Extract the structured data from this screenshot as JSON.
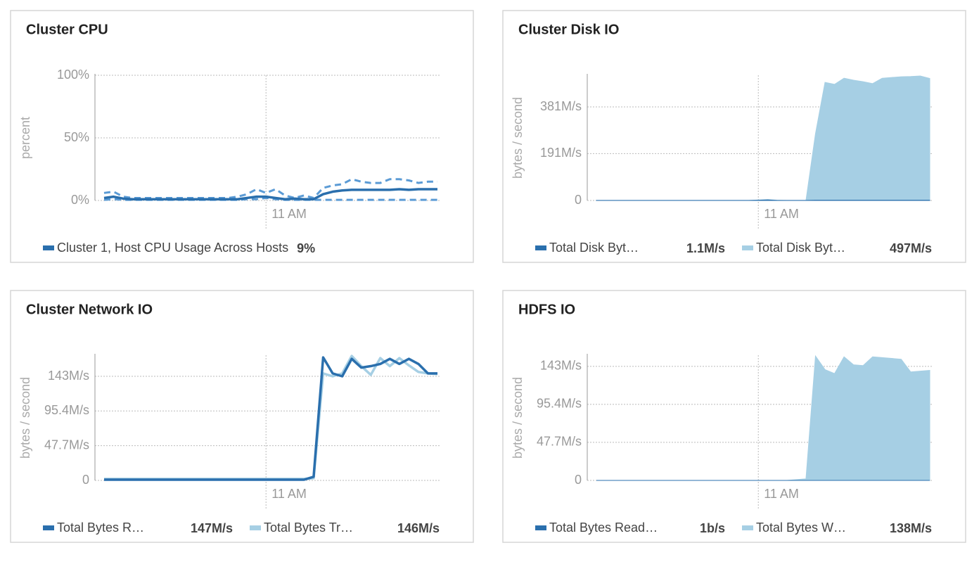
{
  "chart_data": [
    {
      "type": "line",
      "title": "Cluster CPU",
      "ylabel": "percent",
      "categories": [
        null,
        null,
        null,
        null,
        null,
        null,
        null,
        null,
        null,
        null,
        null,
        null,
        null,
        null,
        null,
        null,
        null,
        "11 AM",
        null,
        null,
        null,
        null,
        null,
        null,
        null,
        null,
        null,
        null,
        null,
        null,
        null,
        null,
        null,
        null,
        null,
        null
      ],
      "ylim": [
        0,
        100
      ],
      "yticks": [
        {
          "value": 0,
          "label": "0%"
        },
        {
          "value": 50,
          "label": "50%"
        },
        {
          "value": 100,
          "label": "100%"
        }
      ],
      "series": [
        {
          "name": "Cluster 1, Host CPU Usage Across Hosts",
          "legend_value": "9%",
          "color": "#2a6fad",
          "band_color": "#5b9bd5",
          "values": [
            2,
            3,
            1.5,
            1,
            1,
            1,
            1,
            1,
            1,
            1,
            1,
            1,
            1,
            1,
            1,
            2,
            3,
            3,
            2,
            1,
            1.5,
            1,
            1,
            5,
            7,
            8,
            8.5,
            8.5,
            8.5,
            8.5,
            8.5,
            9,
            8.5,
            9,
            9,
            9
          ],
          "max_values": [
            6,
            7,
            3,
            2,
            2,
            2,
            2,
            2,
            2,
            2,
            2,
            2,
            2,
            2,
            3,
            5,
            9,
            6,
            9,
            4,
            2,
            4,
            2,
            10,
            12,
            13,
            17,
            15,
            14,
            14,
            17,
            17,
            16,
            14,
            15,
            15
          ],
          "min_values": [
            0.5,
            1,
            0.5,
            0.5,
            0.5,
            0.5,
            0.5,
            0.5,
            0.5,
            0.5,
            0.5,
            0.5,
            0.5,
            0.5,
            0.5,
            1,
            1,
            2,
            1,
            0.5,
            0.5,
            0.5,
            0.5,
            0.5,
            0.5,
            0.5,
            0.5,
            0.5,
            0.5,
            0.5,
            0.5,
            0.5,
            0.5,
            0.5,
            0.5,
            0.5
          ]
        }
      ]
    },
    {
      "type": "area",
      "title": "Cluster Disk IO",
      "ylabel": "bytes / second",
      "categories": [
        null,
        null,
        null,
        null,
        null,
        null,
        null,
        null,
        null,
        null,
        null,
        null,
        null,
        null,
        null,
        null,
        null,
        "11 AM",
        null,
        null,
        null,
        null,
        null,
        null,
        null,
        null,
        null,
        null,
        null,
        null,
        null,
        null,
        null,
        null,
        null,
        null
      ],
      "ylim": [
        0,
        510
      ],
      "yticks": [
        0,
        {
          "value": 191,
          "label": "191M/s"
        },
        {
          "value": 381,
          "label": "381M/s"
        }
      ],
      "series": [
        {
          "name": "Total Disk Byt…",
          "legend_value": "1.1M/s",
          "color": "#2a6fad",
          "values": [
            0.5,
            0.5,
            0.5,
            0.5,
            0.5,
            0.5,
            0.5,
            0.5,
            0.5,
            0.5,
            0.5,
            0.5,
            0.5,
            0.5,
            0.5,
            0.5,
            0.5,
            1,
            2,
            0.5,
            0.5,
            0.5,
            0.5,
            1,
            1.1,
            1.1,
            1.1,
            1.1,
            1.1,
            1.1,
            1.1,
            1.1,
            1.1,
            1.1,
            1.1,
            1.1
          ]
        },
        {
          "name": "Total Disk Byt…",
          "legend_value": "497M/s",
          "color": "#a6cfe4",
          "values": [
            0,
            0,
            0,
            0,
            0,
            0,
            0,
            0,
            0,
            0,
            0,
            0,
            0,
            0,
            0,
            0,
            0,
            2,
            4,
            1,
            0,
            0,
            0,
            272,
            481,
            473,
            498,
            490,
            484,
            476,
            498,
            501,
            504,
            505,
            507,
            497
          ]
        }
      ]
    },
    {
      "type": "line",
      "title": "Cluster Network IO",
      "ylabel": "bytes / second",
      "categories": [
        null,
        null,
        null,
        null,
        null,
        null,
        null,
        null,
        null,
        null,
        null,
        null,
        null,
        null,
        null,
        null,
        null,
        "11 AM",
        null,
        null,
        null,
        null,
        null,
        null,
        null,
        null,
        null,
        null,
        null,
        null,
        null,
        null,
        null,
        null,
        null,
        null
      ],
      "ylim": [
        0,
        172
      ],
      "yticks": [
        0,
        {
          "value": 47.7,
          "label": "47.7M/s"
        },
        {
          "value": 95.4,
          "label": "95.4M/s"
        },
        {
          "value": 143,
          "label": "143M/s"
        }
      ],
      "series": [
        {
          "name": "Total Bytes R…",
          "legend_value": "147M/s",
          "color": "#2a6fad",
          "values": [
            1,
            1,
            1,
            1,
            1,
            1,
            1,
            1,
            1,
            1,
            1,
            1,
            1,
            1,
            1,
            1,
            1,
            1,
            1,
            1,
            1,
            1,
            5,
            169,
            147,
            143,
            167,
            155,
            157,
            160,
            167,
            160,
            167,
            160,
            147,
            147
          ]
        },
        {
          "name": "Total Bytes Tr…",
          "legend_value": "146M/s",
          "color": "#a6cfe4",
          "values": [
            2,
            2,
            2,
            2,
            2,
            2,
            2,
            2,
            2,
            2,
            2,
            2,
            2,
            2,
            2,
            2,
            2,
            2,
            2,
            2,
            2,
            2,
            3,
            147,
            143,
            147,
            171,
            157,
            145,
            168,
            157,
            168,
            158,
            149,
            147,
            146
          ]
        }
      ]
    },
    {
      "type": "area",
      "title": "HDFS IO",
      "ylabel": "bytes / second",
      "categories": [
        null,
        null,
        null,
        null,
        null,
        null,
        null,
        null,
        null,
        null,
        null,
        null,
        null,
        null,
        null,
        null,
        null,
        "11 AM",
        null,
        null,
        null,
        null,
        null,
        null,
        null,
        null,
        null,
        null,
        null,
        null,
        null,
        null,
        null,
        null,
        null,
        null
      ],
      "ylim": [
        0,
        157
      ],
      "yticks": [
        0,
        {
          "value": 47.7,
          "label": "47.7M/s"
        },
        {
          "value": 95.4,
          "label": "95.4M/s"
        },
        {
          "value": 143,
          "label": "143M/s"
        }
      ],
      "series": [
        {
          "name": "Total Bytes Read…",
          "legend_value": "1b/s",
          "color": "#2a6fad",
          "values": [
            0,
            0,
            0,
            0,
            0,
            0,
            0,
            0,
            0,
            0,
            0,
            0,
            0,
            0,
            0,
            0,
            0,
            0,
            0,
            0,
            0,
            0,
            0,
            0,
            0,
            0,
            0,
            0,
            0,
            0,
            0,
            0,
            0,
            0,
            0,
            0
          ]
        },
        {
          "name": "Total Bytes W…",
          "legend_value": "138M/s",
          "color": "#a6cfe4",
          "values": [
            0,
            0,
            0,
            0,
            0,
            0,
            0,
            0,
            0,
            0,
            0,
            0,
            0,
            0,
            0,
            0,
            0,
            0,
            0,
            0,
            0,
            1,
            2,
            156,
            139,
            134,
            155,
            145,
            144,
            155,
            154,
            153,
            152,
            136,
            137,
            138
          ]
        }
      ]
    }
  ]
}
